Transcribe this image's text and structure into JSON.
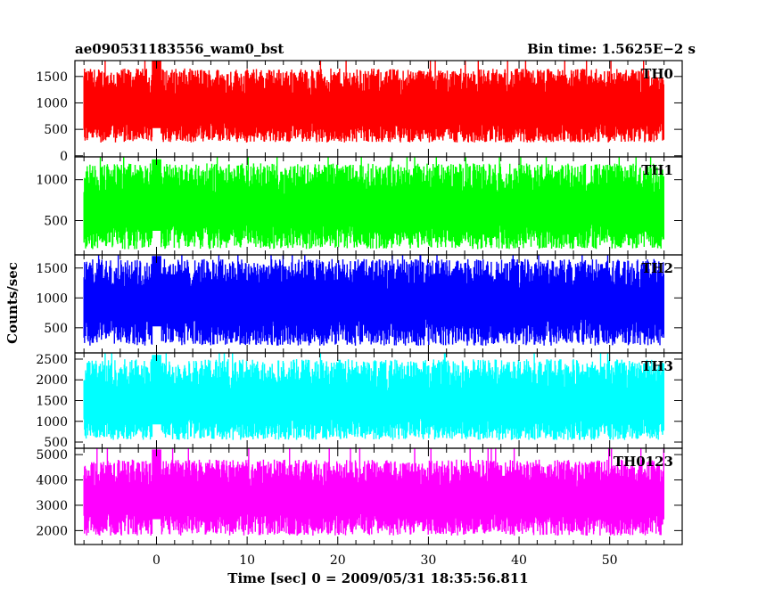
{
  "header": {
    "title": "ae090531183556_wam0_bst",
    "bin_time": "Bin time: 1.5625E−2 s"
  },
  "axes": {
    "xlabel": "Time [sec] 0 = 2009/05/31 18:35:56.811",
    "ylabel": "Counts/sec"
  },
  "chart_data": {
    "type": "line",
    "title": "ae090531183556_wam0_bst",
    "subtitle": "Bin time: 1.5625E−2 s",
    "xlabel": "Time [sec] 0 = 2009/05/31 18:35:56.811",
    "ylabel": "Counts/sec",
    "xlim": [
      -9,
      58
    ],
    "x_range_data": [
      -8,
      56
    ],
    "x_ticks": [
      0,
      10,
      20,
      30,
      40,
      50
    ],
    "grid": false,
    "legend": "none",
    "series": [
      {
        "name": "TH0",
        "color": "#ff0000",
        "ylim": [
          -20,
          1800
        ],
        "y_ticks": [
          0,
          500,
          1000,
          1500
        ],
        "mean": 800,
        "low": 250,
        "high": 1650,
        "peak_x": 0,
        "peak_y": 1800
      },
      {
        "name": "TH1",
        "color": "#00ff00",
        "ylim": [
          80,
          1280
        ],
        "y_ticks": [
          500,
          1000
        ],
        "mean": 600,
        "low": 150,
        "high": 1200,
        "peak_x": 0,
        "peak_y": 1250
      },
      {
        "name": "TH2",
        "color": "#0000ff",
        "ylim": [
          80,
          1720
        ],
        "y_ticks": [
          500,
          1000,
          1500
        ],
        "mean": 850,
        "low": 200,
        "high": 1650,
        "peak_x": 0,
        "peak_y": 1700
      },
      {
        "name": "TH3",
        "color": "#00ffff",
        "ylim": [
          350,
          2650
        ],
        "y_ticks": [
          500,
          1000,
          1500,
          2000,
          2500
        ],
        "mean": 1300,
        "low": 550,
        "high": 2500,
        "peak_x": 0,
        "peak_y": 2600
      },
      {
        "name": "TH0123",
        "color": "#ff00ff",
        "ylim": [
          1450,
          5250
        ],
        "y_ticks": [
          2000,
          3000,
          4000,
          5000
        ],
        "mean": 3100,
        "low": 1800,
        "high": 4800,
        "peak_x": 0,
        "peak_y": 5200
      }
    ]
  }
}
